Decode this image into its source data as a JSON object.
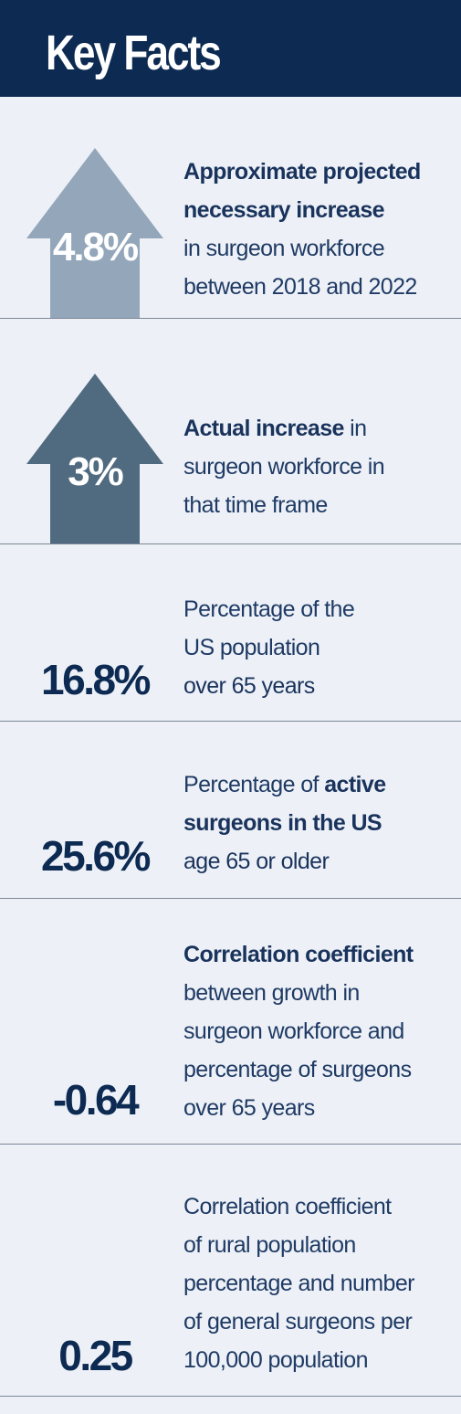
{
  "header": {
    "title": "Key Facts"
  },
  "facts": [
    {
      "value": "4.8%",
      "arrow_color": "#93a6ba",
      "lines": [
        {
          "bold": "Approximate projected"
        },
        {
          "bold": "necessary increase"
        },
        {
          "plain": "in surgeon workforce"
        },
        {
          "plain": "between 2018 and 2022"
        }
      ]
    },
    {
      "value": "3%",
      "arrow_color": "#506a80",
      "lines": [
        {
          "bold": "Actual increase",
          "plain": " in"
        },
        {
          "plain": "surgeon workforce in"
        },
        {
          "plain": "that time frame"
        }
      ]
    },
    {
      "value": "16.8%",
      "lines": [
        {
          "plain": "Percentage of the"
        },
        {
          "plain": "US population"
        },
        {
          "medium": "over 65 years"
        }
      ]
    },
    {
      "value": "25.6%",
      "lines": [
        {
          "plain": "Percentage of ",
          "bold": "active"
        },
        {
          "bold": "surgeons in the US"
        },
        {
          "medium": "age 65 or older"
        }
      ]
    },
    {
      "value": "-0.64",
      "lines": [
        {
          "bold": "Correlation coefficient"
        },
        {
          "plain": "between growth in"
        },
        {
          "plain": "surgeon workforce and"
        },
        {
          "plain": "percentage of surgeons"
        },
        {
          "plain": "over 65 years"
        }
      ]
    },
    {
      "value": "0.25",
      "lines": [
        {
          "plain": "Correlation coefficient"
        },
        {
          "plain": "of rural population"
        },
        {
          "plain": "percentage and number"
        },
        {
          "plain": "of general surgeons per"
        },
        {
          "plain": "100,000 population"
        }
      ]
    }
  ]
}
